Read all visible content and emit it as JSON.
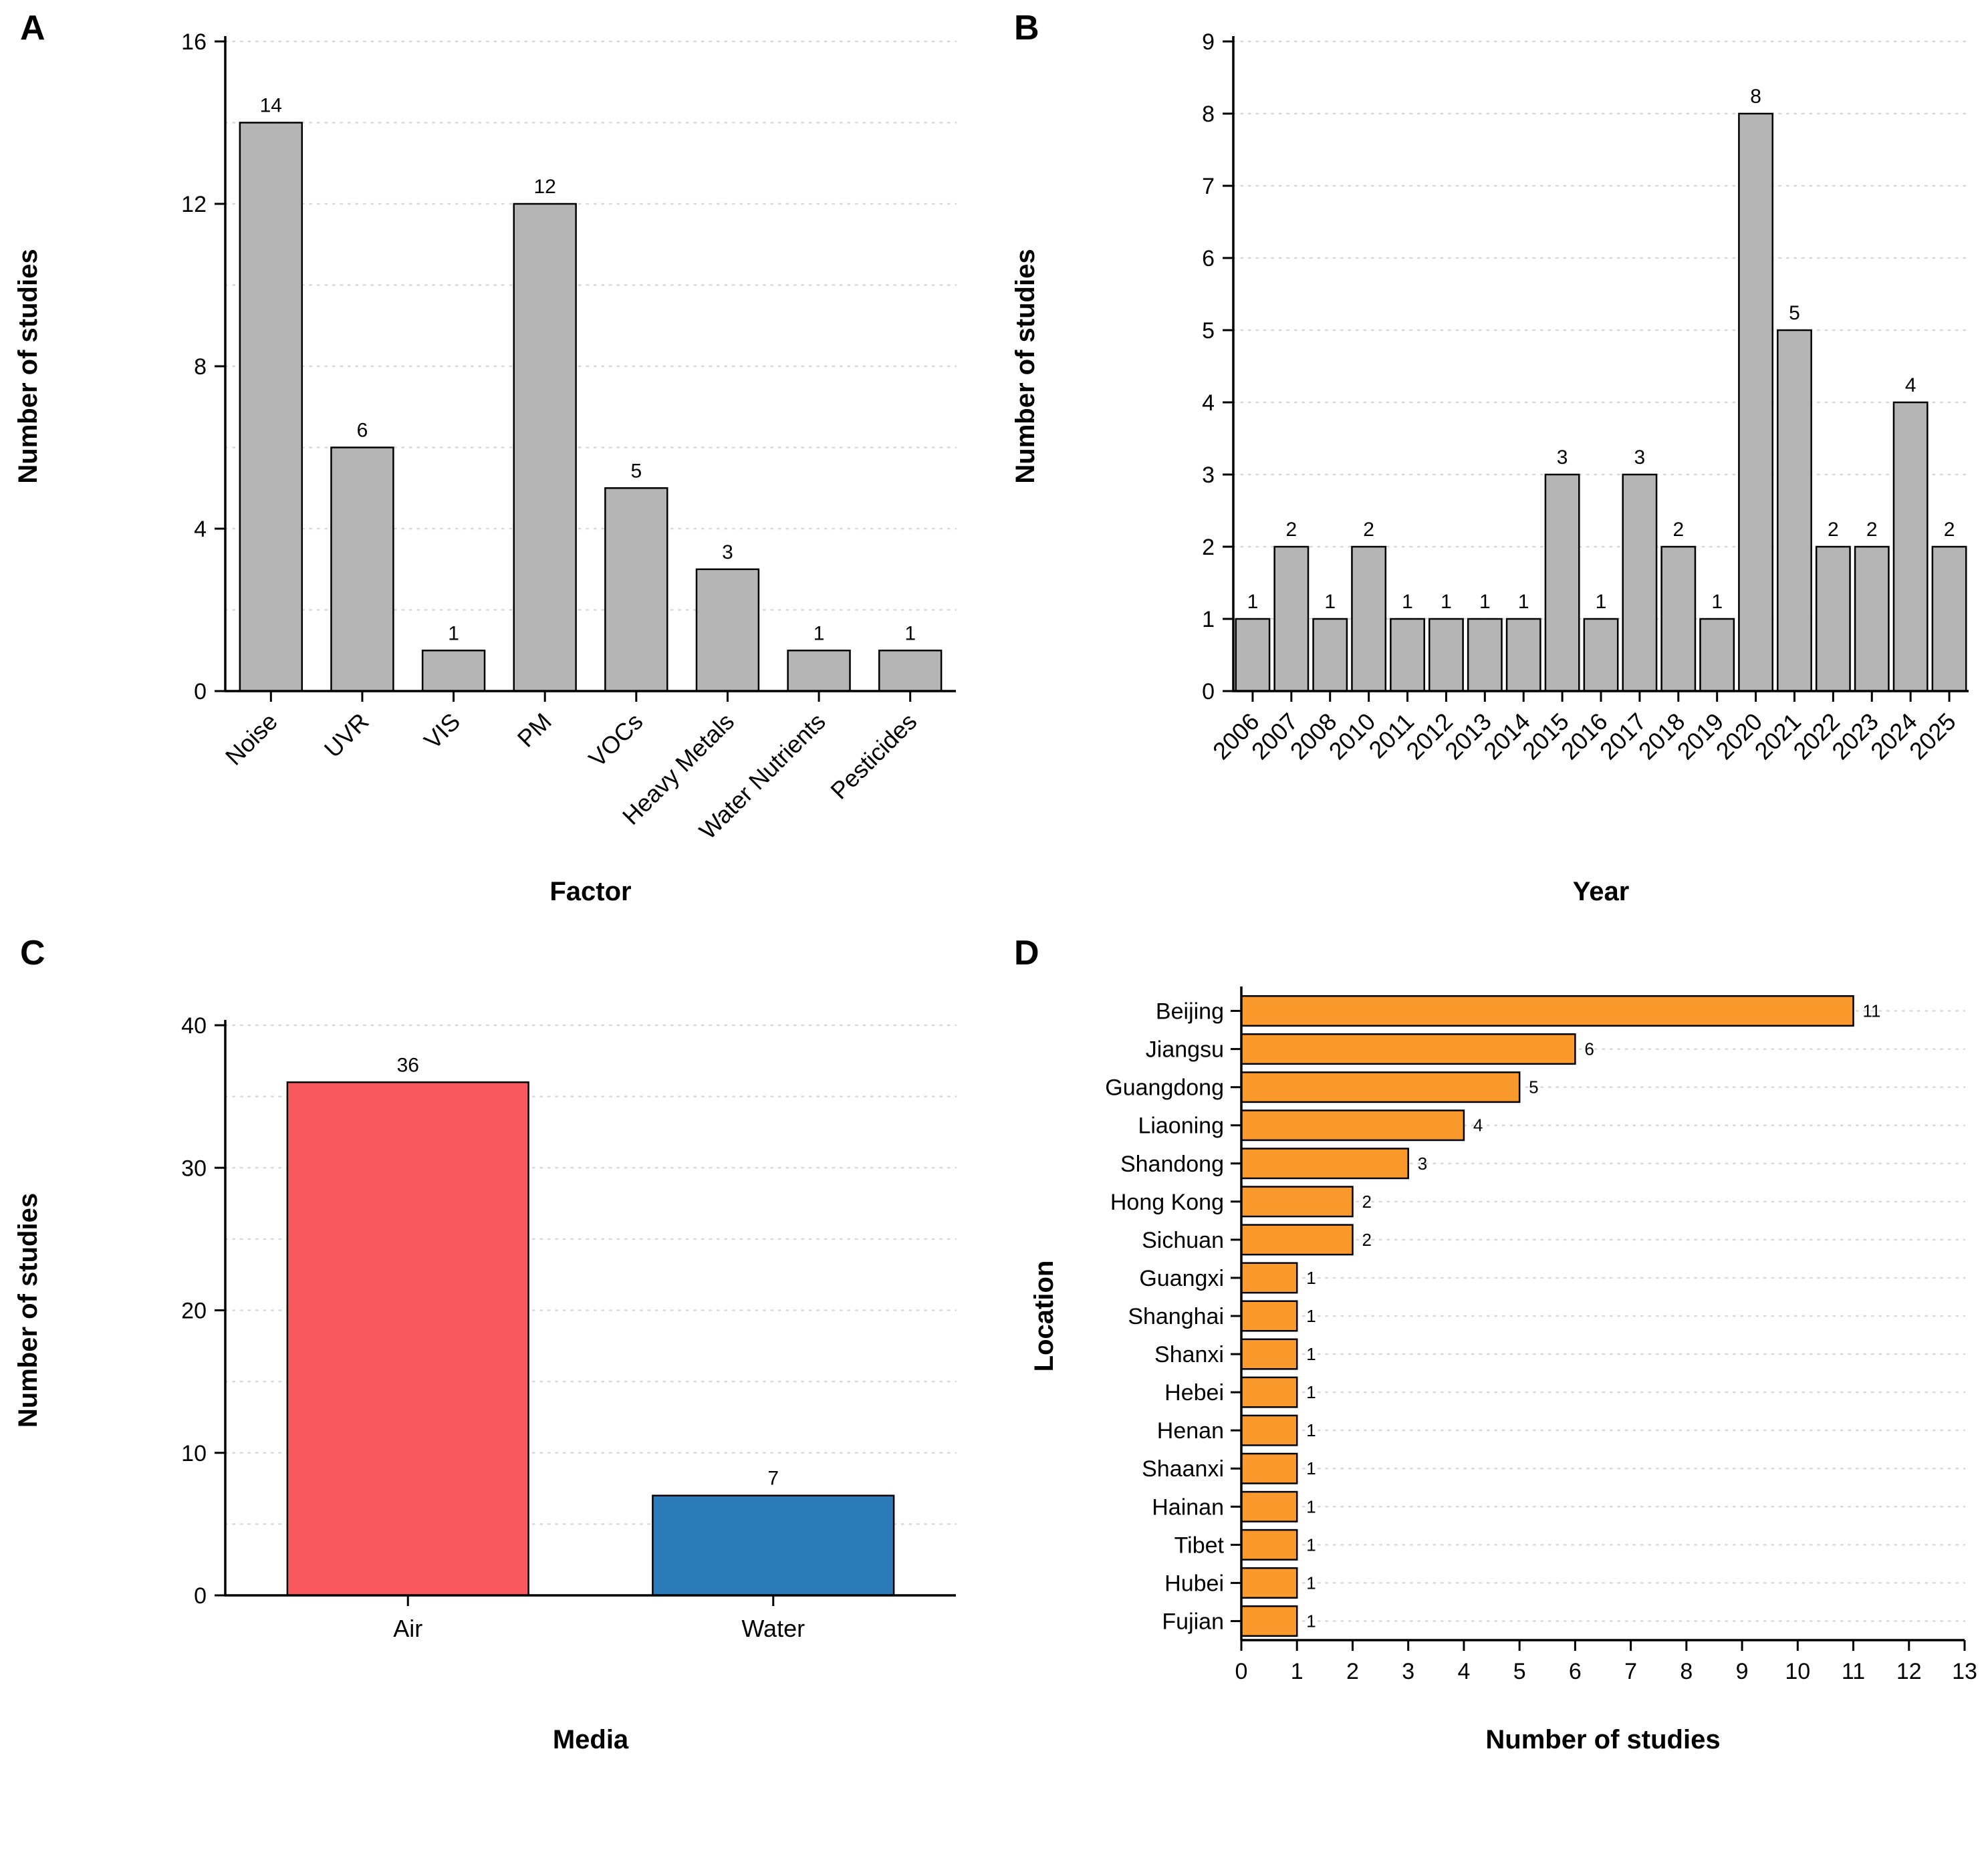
{
  "figure": {
    "background": "#ffffff",
    "axis_color": "#000000",
    "grid_color": "#d9d9d9"
  },
  "chart_data": [
    {
      "panel": "A",
      "type": "bar",
      "categories": [
        "Noise",
        "UVR",
        "VIS",
        "PM",
        "VOCs",
        "Heavy Metals",
        "Water Nutrients",
        "Pesticides"
      ],
      "values": [
        14,
        6,
        1,
        12,
        5,
        3,
        1,
        1
      ],
      "xlabel": "Factor",
      "ylabel": "Number of studies",
      "ylim": [
        0,
        16
      ],
      "yticks": [
        0,
        4,
        8,
        12,
        16
      ],
      "grid_step": 2,
      "grid": "horizontal-dotted",
      "legend": "none",
      "bar_color": "#b5b5b5",
      "bar_stroke": "#000000"
    },
    {
      "panel": "B",
      "type": "bar",
      "categories": [
        "2006",
        "2007",
        "2008",
        "2010",
        "2011",
        "2012",
        "2013",
        "2014",
        "2015",
        "2016",
        "2017",
        "2018",
        "2019",
        "2020",
        "2021",
        "2022",
        "2023",
        "2024",
        "2025"
      ],
      "values": [
        1,
        2,
        1,
        2,
        1,
        1,
        1,
        1,
        3,
        1,
        3,
        2,
        1,
        8,
        5,
        2,
        2,
        4,
        2
      ],
      "xlabel": "Year",
      "ylabel": "Number of studies",
      "ylim": [
        0,
        9
      ],
      "yticks": [
        0,
        1,
        2,
        3,
        4,
        5,
        6,
        7,
        8,
        9
      ],
      "grid_step": 1,
      "grid": "horizontal-dotted",
      "legend": "none",
      "bar_color": "#b5b5b5",
      "bar_stroke": "#000000"
    },
    {
      "panel": "C",
      "type": "bar",
      "categories": [
        "Air",
        "Water"
      ],
      "values": [
        36,
        7
      ],
      "colors": [
        "#FA5A5F",
        "#2B7BB9"
      ],
      "xlabel": "Media",
      "ylabel": "Number of studies",
      "ylim": [
        0,
        40
      ],
      "yticks": [
        0,
        10,
        20,
        30,
        40
      ],
      "grid_step": 5,
      "grid": "horizontal-dotted",
      "legend": "none",
      "bar_stroke": "#000000"
    },
    {
      "panel": "D",
      "type": "barh",
      "categories": [
        "Beijing",
        "Jiangsu",
        "Guangdong",
        "Liaoning",
        "Shandong",
        "Hong Kong",
        "Sichuan",
        "Guangxi",
        "Shanghai",
        "Shanxi",
        "Hebei",
        "Henan",
        "Shaanxi",
        "Hainan",
        "Tibet",
        "Hubei",
        "Fujian"
      ],
      "values": [
        11,
        6,
        5,
        4,
        3,
        2,
        2,
        1,
        1,
        1,
        1,
        1,
        1,
        1,
        1,
        1,
        1
      ],
      "xlabel": "Number of studies",
      "ylabel": "Location",
      "xlim": [
        0,
        13
      ],
      "xticks": [
        0,
        1,
        2,
        3,
        4,
        5,
        6,
        7,
        8,
        9,
        10,
        11,
        12,
        13
      ],
      "grid": "category-dotted",
      "legend": "none",
      "bar_color": "#FB9A2C",
      "bar_stroke": "#000000"
    }
  ]
}
